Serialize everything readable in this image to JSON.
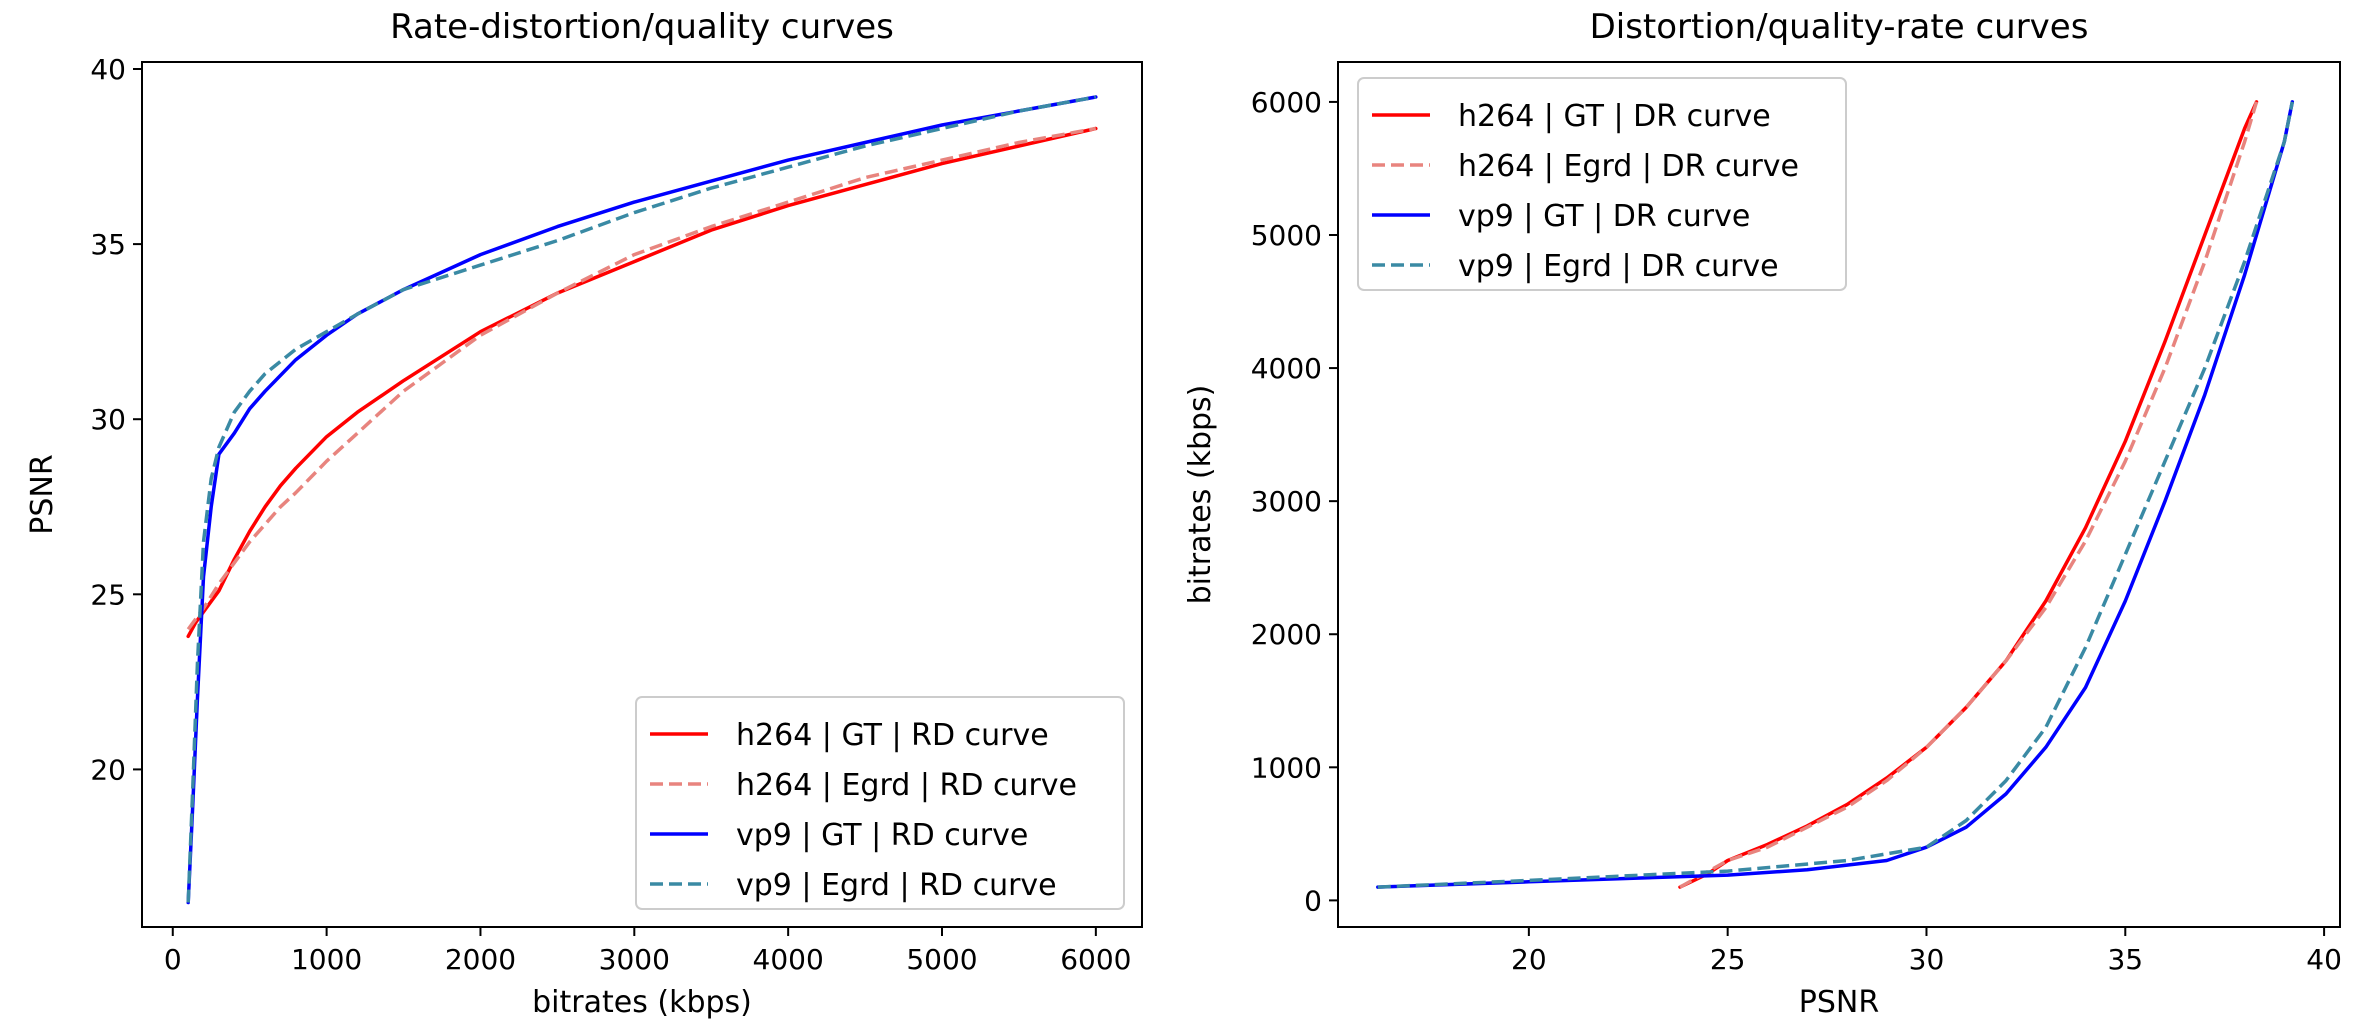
{
  "chart_data": [
    {
      "type": "line",
      "title": "Rate-distortion/quality curves",
      "xlabel": "bitrates (kbps)",
      "ylabel": "PSNR",
      "xlim": [
        -200,
        6300
      ],
      "ylim": [
        15.5,
        40.2
      ],
      "xticks": [
        0,
        1000,
        2000,
        3000,
        4000,
        5000,
        6000
      ],
      "yticks": [
        20,
        25,
        30,
        35,
        40
      ],
      "grid": false,
      "legend_position": "lower-right",
      "series": [
        {
          "name": "h264 | GT | RD curve",
          "color": "#ff0000",
          "dash": "solid",
          "x": [
            100,
            150,
            200,
            250,
            300,
            400,
            500,
            600,
            700,
            800,
            1000,
            1200,
            1500,
            2000,
            2500,
            3000,
            3500,
            4000,
            4500,
            5000,
            5500,
            6000
          ],
          "y": [
            23.8,
            24.2,
            24.5,
            24.8,
            25.1,
            26.0,
            26.8,
            27.5,
            28.1,
            28.6,
            29.5,
            30.2,
            31.1,
            32.5,
            33.6,
            34.5,
            35.4,
            36.1,
            36.7,
            37.3,
            37.8,
            38.3
          ]
        },
        {
          "name": "h264 | Egrd | RD curve",
          "color": "#e8847e",
          "dash": "dashed",
          "x": [
            100,
            200,
            300,
            400,
            500,
            600,
            700,
            800,
            1000,
            1200,
            1500,
            2000,
            2500,
            3000,
            3500,
            4000,
            4500,
            5000,
            5500,
            6000
          ],
          "y": [
            24.0,
            24.6,
            25.3,
            25.9,
            26.5,
            27.0,
            27.5,
            27.9,
            28.8,
            29.6,
            30.8,
            32.4,
            33.6,
            34.7,
            35.5,
            36.2,
            36.9,
            37.4,
            37.9,
            38.3
          ]
        },
        {
          "name": "vp9 | GT | RD curve",
          "color": "#0000ff",
          "dash": "solid",
          "x": [
            100,
            130,
            160,
            200,
            250,
            300,
            400,
            500,
            600,
            800,
            1000,
            1200,
            1500,
            2000,
            2500,
            3000,
            3500,
            4000,
            4500,
            5000,
            5500,
            6000
          ],
          "y": [
            16.2,
            19.0,
            22.0,
            25.5,
            27.5,
            29.0,
            29.6,
            30.3,
            30.8,
            31.7,
            32.4,
            33.0,
            33.7,
            34.7,
            35.5,
            36.2,
            36.8,
            37.4,
            37.9,
            38.4,
            38.8,
            39.2
          ]
        },
        {
          "name": "vp9 | Egrd | RD curve",
          "color": "#3a8aa4",
          "dash": "dashed",
          "x": [
            100,
            130,
            160,
            200,
            250,
            300,
            400,
            500,
            600,
            800,
            1000,
            1200,
            1500,
            2000,
            2500,
            3000,
            3500,
            4000,
            4500,
            5000,
            5500,
            6000
          ],
          "y": [
            16.2,
            19.5,
            23.0,
            26.5,
            28.3,
            29.2,
            30.2,
            30.8,
            31.3,
            32.0,
            32.5,
            33.0,
            33.7,
            34.4,
            35.1,
            35.9,
            36.6,
            37.2,
            37.8,
            38.3,
            38.8,
            39.2
          ]
        }
      ]
    },
    {
      "type": "line",
      "title": "Distortion/quality-rate curves",
      "xlabel": "PSNR",
      "ylabel": "bitrates (kbps)",
      "xlim": [
        15.2,
        40.4
      ],
      "ylim": [
        -200,
        6300
      ],
      "xticks": [
        20,
        25,
        30,
        35,
        40
      ],
      "yticks": [
        0,
        1000,
        2000,
        3000,
        4000,
        5000,
        6000
      ],
      "grid": false,
      "legend_position": "upper-left",
      "series": [
        {
          "name": "h264 | GT | DR curve",
          "color": "#ff0000",
          "dash": "solid",
          "x": [
            23.8,
            24.5,
            25.0,
            26.0,
            27.0,
            28.0,
            29.0,
            30.0,
            31.0,
            32.0,
            33.0,
            34.0,
            35.0,
            36.0,
            37.0,
            38.0,
            38.3
          ],
          "y": [
            100,
            200,
            300,
            420,
            560,
            720,
            920,
            1150,
            1450,
            1800,
            2250,
            2800,
            3450,
            4200,
            5000,
            5800,
            6000
          ]
        },
        {
          "name": "h264 | Egrd | DR curve",
          "color": "#e8847e",
          "dash": "dashed",
          "x": [
            23.8,
            25.0,
            26.0,
            27.0,
            28.0,
            29.0,
            30.0,
            31.0,
            32.0,
            33.0,
            34.0,
            35.0,
            36.0,
            37.0,
            38.0,
            38.3
          ],
          "y": [
            100,
            300,
            400,
            550,
            700,
            900,
            1150,
            1450,
            1800,
            2200,
            2700,
            3300,
            4000,
            4800,
            5700,
            6000
          ]
        },
        {
          "name": "vp9 | GT | DR curve",
          "color": "#0000ff",
          "dash": "solid",
          "x": [
            16.2,
            20.0,
            25.0,
            27.0,
            29.0,
            30.0,
            31.0,
            32.0,
            33.0,
            34.0,
            35.0,
            36.0,
            37.0,
            38.0,
            39.0,
            39.2
          ],
          "y": [
            100,
            140,
            190,
            230,
            300,
            400,
            550,
            800,
            1150,
            1600,
            2250,
            3000,
            3800,
            4700,
            5700,
            6000
          ]
        },
        {
          "name": "vp9 | Egrd | DR curve",
          "color": "#3a8aa4",
          "dash": "dashed",
          "x": [
            16.2,
            20.0,
            25.0,
            28.0,
            30.0,
            31.0,
            32.0,
            33.0,
            34.0,
            35.0,
            36.0,
            37.0,
            38.0,
            39.0,
            39.2
          ],
          "y": [
            100,
            150,
            220,
            300,
            400,
            600,
            900,
            1300,
            1900,
            2600,
            3300,
            4000,
            4800,
            5700,
            6000
          ]
        }
      ]
    }
  ]
}
